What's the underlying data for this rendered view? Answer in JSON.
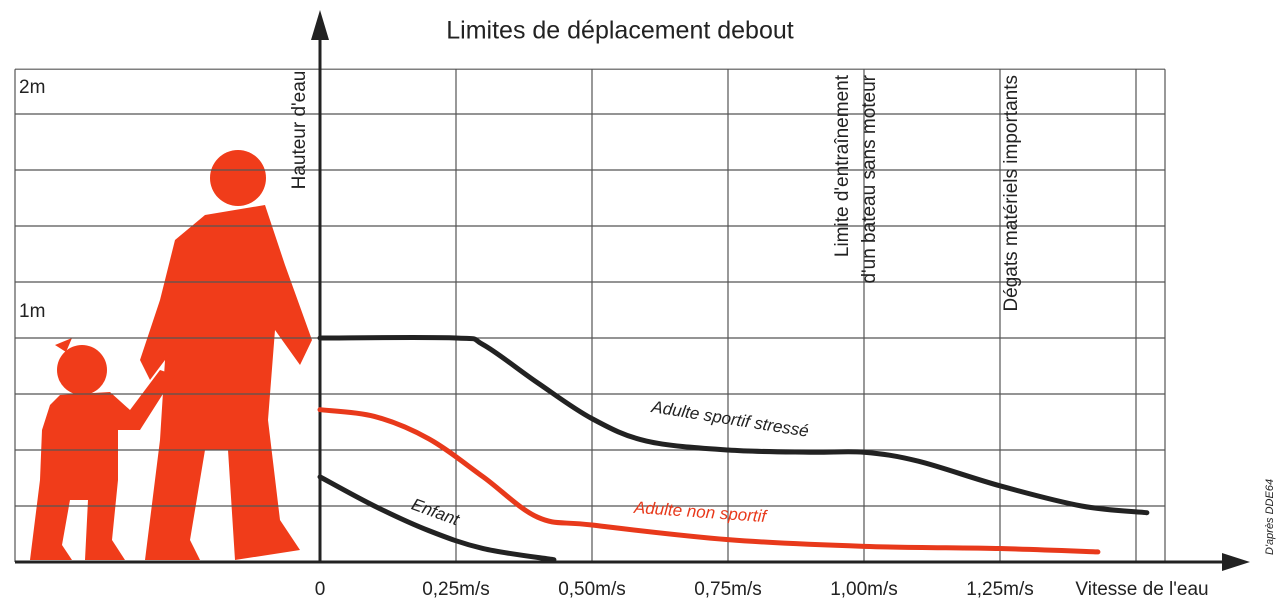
{
  "chart_data": {
    "type": "line",
    "title": "Limites de déplacement debout",
    "xlabel": "Vitesse de l'eau",
    "ylabel": "Hauteur d'eau",
    "xlim": [
      0,
      1.7
    ],
    "ylim": [
      0,
      2.2
    ],
    "xticks": [
      {
        "value": 0,
        "label": "0"
      },
      {
        "value": 0.25,
        "label": "0,25m/s"
      },
      {
        "value": 0.5,
        "label": "0,50m/s"
      },
      {
        "value": 0.75,
        "label": "0,75m/s"
      },
      {
        "value": 1.0,
        "label": "1,00m/s"
      },
      {
        "value": 1.25,
        "label": "1,25m/s"
      }
    ],
    "xgrid": [
      0.25,
      0.5,
      0.75,
      1.0,
      1.25,
      1.5
    ],
    "yticks": [
      {
        "value": 1,
        "label": "1m"
      },
      {
        "value": 2,
        "label": "2m"
      }
    ],
    "ygrid": [
      0.25,
      0.5,
      0.75,
      1.0,
      1.25,
      1.5,
      1.75,
      2.0,
      2.2
    ],
    "series": [
      {
        "name": "Adulte sportif stressé",
        "color": "#222222",
        "x": [
          0,
          0.25,
          0.3,
          0.4,
          0.5,
          0.6,
          0.75,
          0.9,
          1.0,
          1.1,
          1.25,
          1.4,
          1.52
        ],
        "values": [
          1.0,
          1.0,
          0.97,
          0.8,
          0.64,
          0.54,
          0.5,
          0.49,
          0.49,
          0.45,
          0.34,
          0.25,
          0.22
        ]
      },
      {
        "name": "Adulte non sportif",
        "color": "#e8391b",
        "x": [
          0,
          0.1,
          0.2,
          0.3,
          0.4,
          0.5,
          0.75,
          1.0,
          1.25,
          1.43
        ],
        "values": [
          0.68,
          0.65,
          0.55,
          0.38,
          0.2,
          0.165,
          0.1,
          0.07,
          0.06,
          0.045
        ]
      },
      {
        "name": "Enfant",
        "color": "#222222",
        "x": [
          0,
          0.1,
          0.2,
          0.3,
          0.43
        ],
        "values": [
          0.38,
          0.25,
          0.14,
          0.06,
          0.01
        ]
      }
    ],
    "annotations": [
      {
        "lines": [
          "Limite d'entraînement",
          "d'un bateau sans moteur"
        ]
      },
      {
        "lines": [
          "Dégats matériels importants"
        ]
      }
    ],
    "source": "D'après DDE64"
  }
}
